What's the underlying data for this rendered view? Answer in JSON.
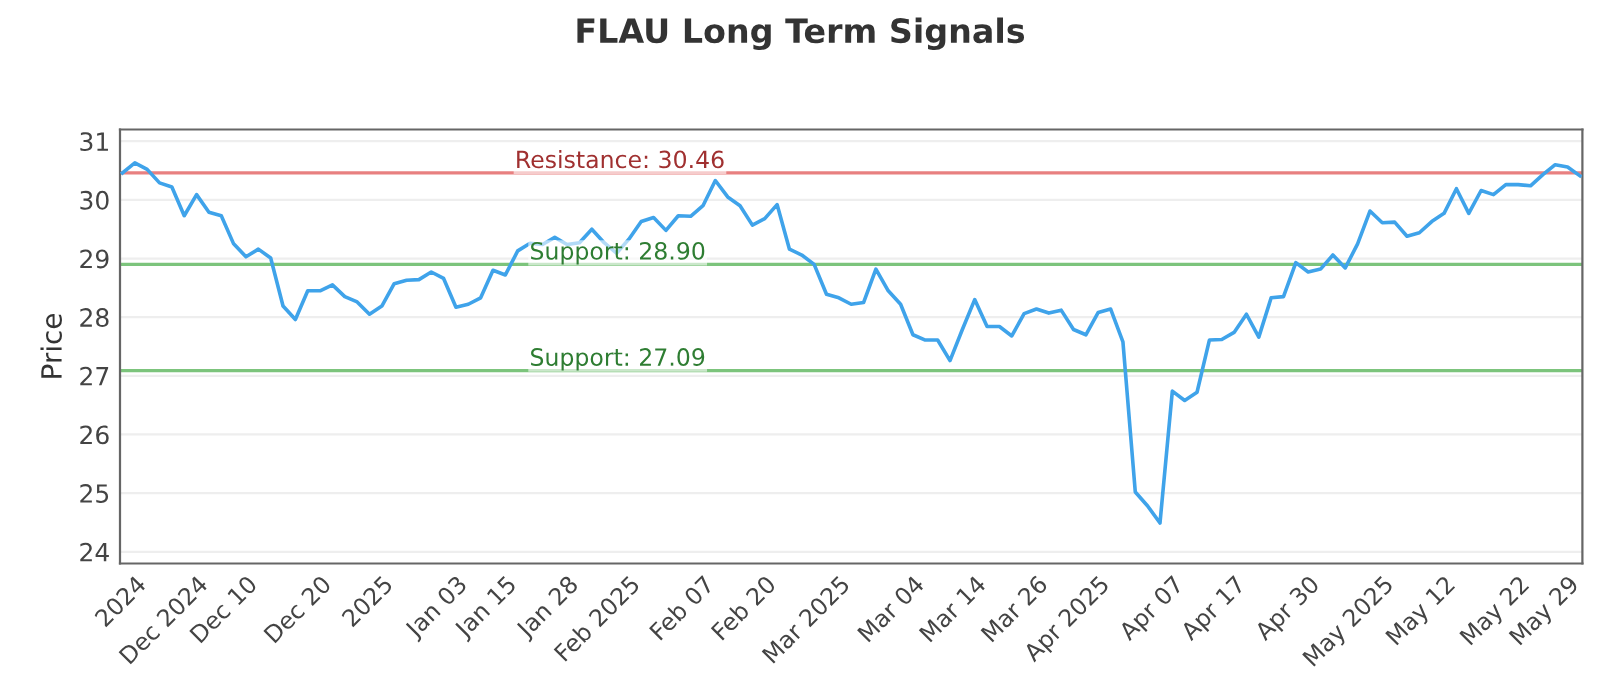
{
  "chart_data": {
    "type": "line",
    "title": "FLAU Long Term Signals",
    "ylabel": "Price",
    "categories": [
      null,
      "2024",
      null,
      null,
      null,
      null,
      "Dec 2024",
      null,
      null,
      null,
      "Dec 10",
      null,
      null,
      null,
      null,
      null,
      "Dec 20",
      null,
      null,
      null,
      null,
      "2025",
      null,
      null,
      null,
      null,
      null,
      "Jan 03",
      null,
      null,
      null,
      "Jan 15",
      null,
      null,
      null,
      null,
      "Jan 28",
      null,
      null,
      null,
      null,
      "Feb 2025",
      null,
      null,
      null,
      null,
      null,
      "Feb 07",
      null,
      null,
      null,
      null,
      "Feb 20",
      null,
      null,
      null,
      null,
      null,
      "Mar 2025",
      null,
      null,
      null,
      null,
      null,
      "Mar 04",
      null,
      null,
      null,
      null,
      "Mar 14",
      null,
      null,
      null,
      null,
      "Mar 26",
      null,
      null,
      null,
      null,
      "Apr 2025",
      null,
      null,
      null,
      null,
      null,
      "Apr 07",
      null,
      null,
      null,
      null,
      "Apr 17",
      null,
      null,
      null,
      null,
      null,
      "Apr 30",
      null,
      null,
      null,
      null,
      null,
      "May 2025",
      null,
      null,
      null,
      null,
      "May 12",
      null,
      null,
      null,
      null,
      null,
      "May 22",
      null,
      null,
      null,
      "May 29",
      null
    ],
    "series": [
      {
        "color": "#3fa3ea",
        "values": [
          30.46,
          30.63,
          30.52,
          30.29,
          30.22,
          29.73,
          30.09,
          29.79,
          29.73,
          29.25,
          29.03,
          29.16,
          29.01,
          28.19,
          27.96,
          28.45,
          28.45,
          28.55,
          28.35,
          28.26,
          28.05,
          28.19,
          28.57,
          28.63,
          28.64,
          28.77,
          28.66,
          28.17,
          28.22,
          28.33,
          28.8,
          28.72,
          29.13,
          29.26,
          29.24,
          29.36,
          29.24,
          29.27,
          29.5,
          29.27,
          29.09,
          29.33,
          29.63,
          29.7,
          29.48,
          29.73,
          29.72,
          29.9,
          30.33,
          30.05,
          29.9,
          29.57,
          29.68,
          29.92,
          29.16,
          29.06,
          28.9,
          28.39,
          28.33,
          28.22,
          28.25,
          28.82,
          28.45,
          28.22,
          27.7,
          27.61,
          27.61,
          27.26,
          27.79,
          28.3,
          27.84,
          27.84,
          27.68,
          28.06,
          28.14,
          28.07,
          28.12,
          27.79,
          27.7,
          28.08,
          28.14,
          27.58,
          25.02,
          24.78,
          24.49,
          26.74,
          26.58,
          26.72,
          27.61,
          27.62,
          27.74,
          28.05,
          27.66,
          28.33,
          28.35,
          28.93,
          28.77,
          28.82,
          29.06,
          28.84,
          29.25,
          29.81,
          29.61,
          29.62,
          29.38,
          29.44,
          29.63,
          29.77,
          30.19,
          29.77,
          30.16,
          30.09,
          30.26,
          30.26,
          30.24,
          30.43,
          30.6,
          30.56,
          30.41
        ]
      }
    ],
    "ylim": [
      23.8,
      31.2
    ],
    "yticks": [
      24,
      25,
      26,
      27,
      28,
      29,
      30,
      31
    ],
    "grid": "y",
    "ref_lines": [
      {
        "axis": "y",
        "value": 30.46,
        "label": "Resistance: 30.46",
        "color": "#e88080"
      },
      {
        "axis": "y",
        "value": 28.9,
        "label": "Support: 28.90",
        "color": "#7cc47c"
      },
      {
        "axis": "y",
        "value": 27.09,
        "label": "Support: 27.09",
        "color": "#7cc47c"
      }
    ]
  }
}
